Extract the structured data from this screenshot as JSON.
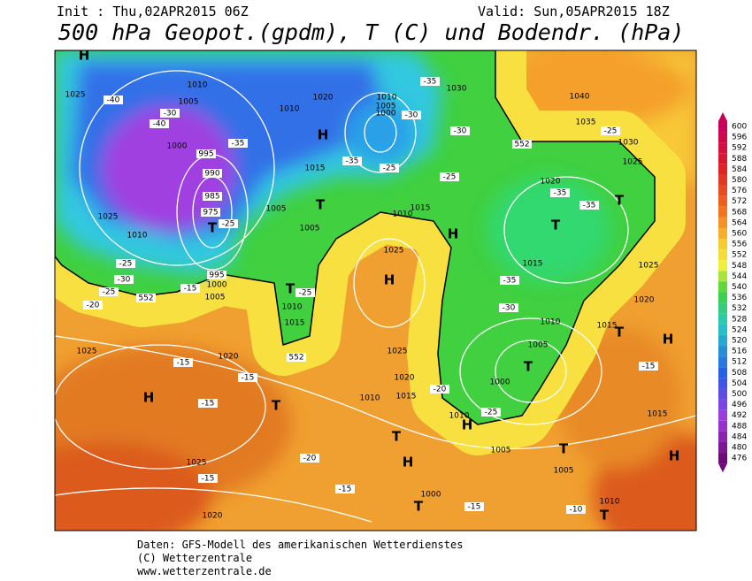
{
  "header": {
    "init": "Init : Thu,02APR2015 06Z",
    "valid": "Valid: Sun,05APR2015 18Z",
    "title": "500 hPa Geopot.(gpdm), T (C) und Bodendr. (hPa)"
  },
  "colorbar": {
    "labels": [
      600,
      596,
      592,
      588,
      584,
      580,
      576,
      572,
      568,
      564,
      560,
      556,
      552,
      548,
      544,
      540,
      536,
      532,
      528,
      524,
      520,
      516,
      512,
      508,
      504,
      500,
      496,
      492,
      488,
      484,
      480,
      476
    ]
  },
  "map": {
    "labels": [
      "H",
      "1025",
      "-40",
      "1010",
      "1005",
      "-30",
      "-40",
      "1000",
      "995",
      "990",
      "985",
      "975",
      "T",
      "1010",
      "1025",
      "-25",
      "-30",
      "-25",
      "-20",
      "552",
      "-15",
      "1000",
      "995",
      "1005",
      "-25",
      "T",
      "1010",
      "1015",
      "552",
      "-25",
      "1020",
      "H",
      "1015",
      "1010",
      "-35",
      "1005",
      "1005",
      "T",
      "1010",
      "1005",
      "1000",
      "-30",
      "-25",
      "1010",
      "1015",
      "1025",
      "H",
      "1030",
      "-35",
      "-30",
      "-25",
      "-35",
      "H",
      "1020",
      "-35",
      "-35",
      "T",
      "1015",
      "-35",
      "-30",
      "1010",
      "1005",
      "T",
      "1000",
      "1020",
      "1025",
      "-20",
      "1010",
      "1015",
      "-25",
      "1010",
      "H",
      "T",
      "H",
      "1005",
      "T",
      "1005",
      "1040",
      "1035",
      "1030",
      "1025",
      "-25",
      "T",
      "1025",
      "1020",
      "1015",
      "T",
      "H",
      "-15",
      "1015",
      "H",
      "-10",
      "T",
      "1010",
      "-15",
      "T",
      "1000",
      "-15",
      "-20",
      "T",
      "H",
      "-15",
      "1025",
      "-15",
      "1020",
      "-15",
      "1025",
      "-15",
      "1020",
      "552"
    ]
  },
  "footer": {
    "lines": [
      "Daten: GFS-Modell des amerikanischen Wetterdienstes",
      "(C) Wetterzentrale",
      "www.wetterzentrale.de"
    ]
  }
}
